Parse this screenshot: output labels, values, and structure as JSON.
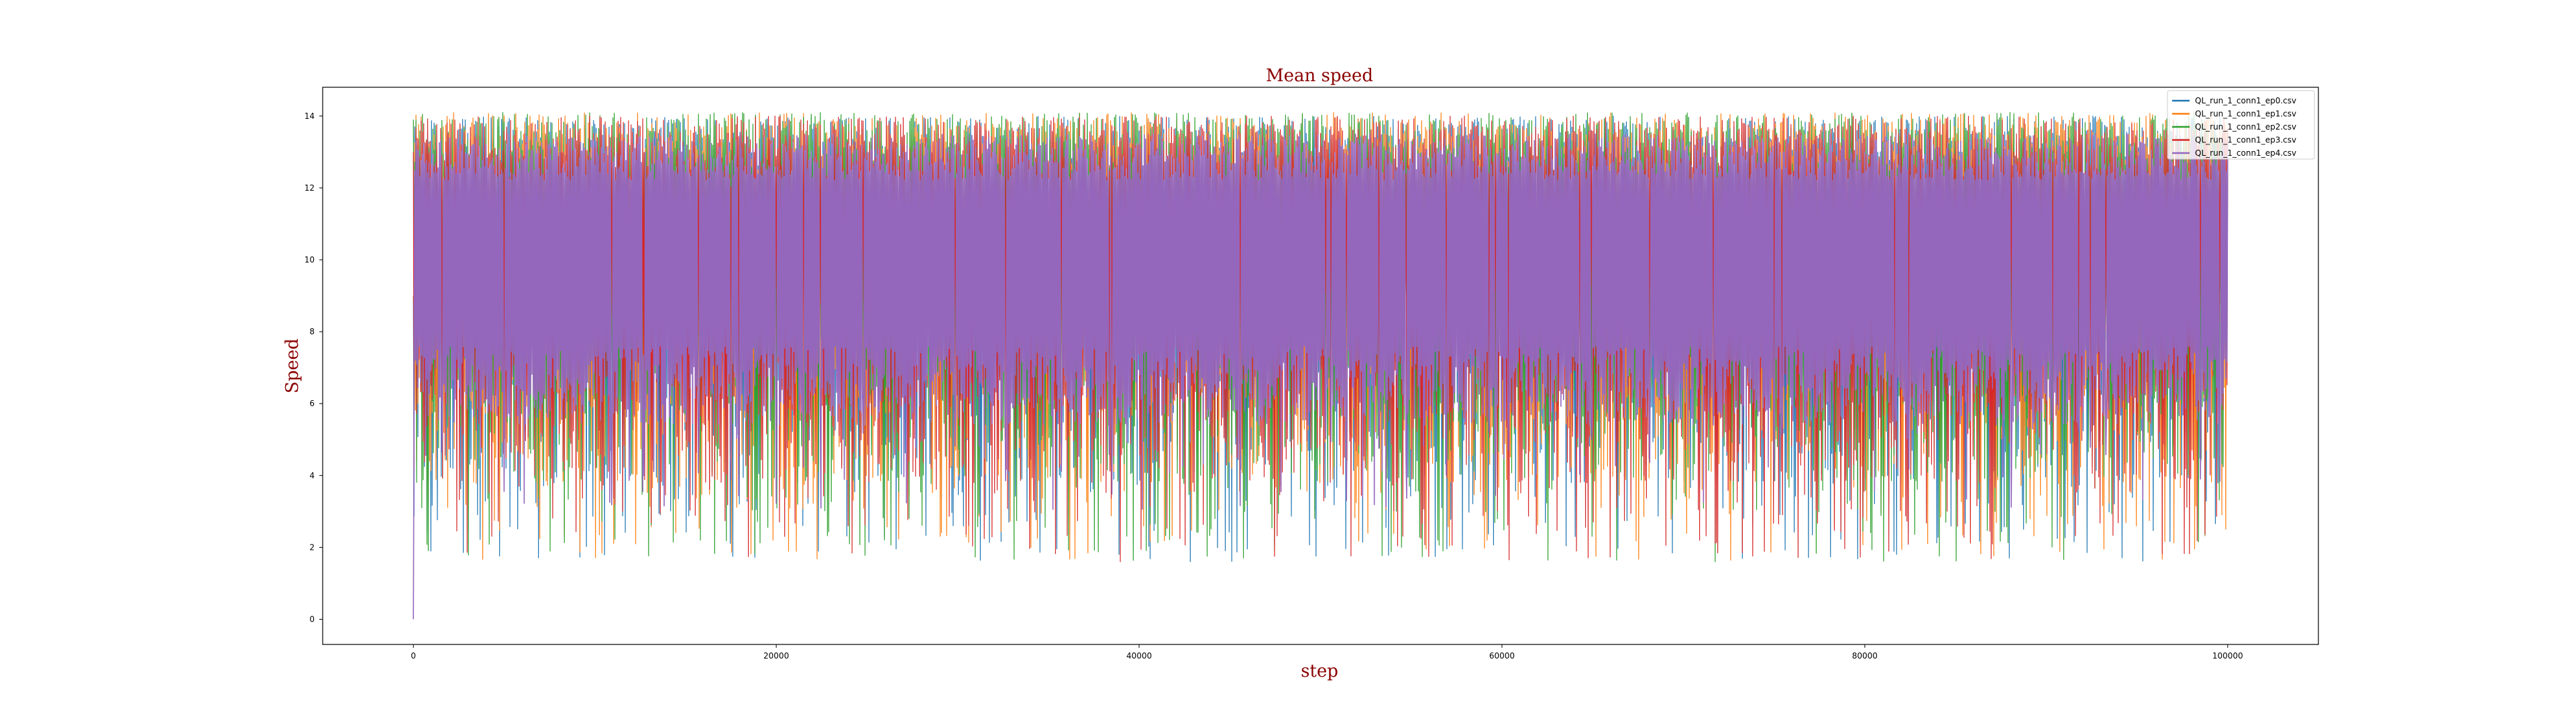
{
  "chart_data": {
    "type": "line",
    "title": "Mean speed",
    "xlabel": "step",
    "ylabel": "Speed",
    "xlim": [
      -5000,
      105000
    ],
    "ylim": [
      -0.7,
      14.8
    ],
    "x_ticks": [
      0,
      20000,
      40000,
      60000,
      80000,
      100000
    ],
    "y_ticks": [
      0,
      2,
      4,
      6,
      8,
      10,
      12,
      14
    ],
    "grid": false,
    "legend_position": "top-right",
    "x_range": [
      0,
      100000
    ],
    "series": [
      {
        "name": "QL_run_1_conn1_ep0.csv",
        "color": "#1f77b4",
        "mean": 9.3,
        "max": 14.0,
        "min": 1.6,
        "start": 9.0
      },
      {
        "name": "QL_run_1_conn1_ep1.csv",
        "color": "#ff7f0e",
        "mean": 9.3,
        "max": 14.1,
        "min": 1.2,
        "start": 9.0
      },
      {
        "name": "QL_run_1_conn1_ep2.csv",
        "color": "#2ca02c",
        "mean": 9.3,
        "max": 14.1,
        "min": 1.3,
        "start": 13.9
      },
      {
        "name": "QL_run_1_conn1_ep3.csv",
        "color": "#d62728",
        "mean": 9.5,
        "max": 14.0,
        "min": 1.6,
        "start": 13.0
      },
      {
        "name": "QL_run_1_conn1_ep4.csv",
        "color": "#9467bd",
        "mean": 9.8,
        "max": 13.5,
        "min": 0.0,
        "start": 0.0
      }
    ]
  }
}
